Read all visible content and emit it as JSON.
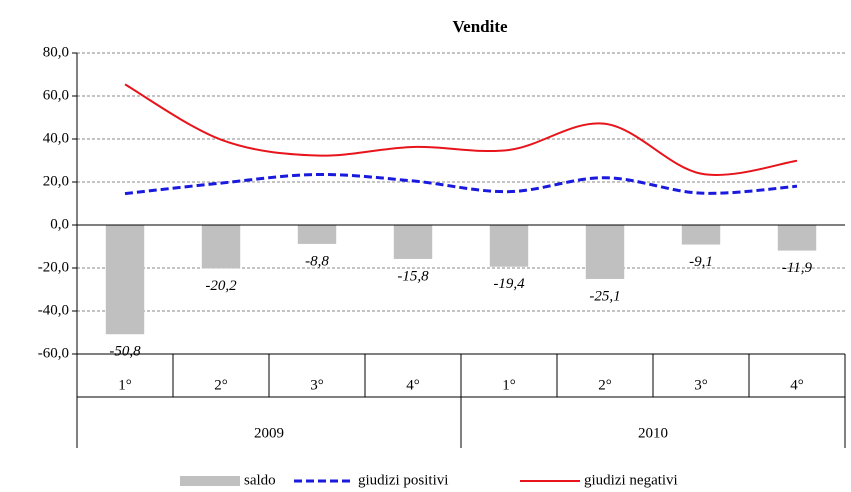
{
  "chart_data": {
    "type": "bar-line",
    "title": "Vendite",
    "categories": [
      "1°",
      "2°",
      "3°",
      "4°",
      "1°",
      "2°",
      "3°",
      "4°"
    ],
    "groups": [
      "2009",
      "2010"
    ],
    "series": [
      {
        "name": "saldo",
        "type": "bar",
        "color": "#c0c0c0",
        "values": [
          -50.8,
          -20.2,
          -8.8,
          -15.8,
          -19.4,
          -25.1,
          -9.1,
          -11.9
        ],
        "value_labels": [
          "-50,8",
          "-20,2",
          "-8,8",
          "-15,8",
          "-19,4",
          "-25,1",
          "-9,1",
          "-11,9"
        ]
      },
      {
        "name": "giudizi positivi",
        "type": "line",
        "dashed": true,
        "color": "#1a1adf",
        "values": [
          14.6,
          19.5,
          23.5,
          20.5,
          15.5,
          22,
          14.8,
          18
        ]
      },
      {
        "name": "giudizi negativi",
        "type": "line",
        "dashed": false,
        "color": "#e8141c",
        "values": [
          65.4,
          39.7,
          32.3,
          36.3,
          34.9,
          47.1,
          23.9,
          29.9
        ]
      }
    ],
    "ylim": [
      -60,
      80
    ],
    "yticks": [
      {
        "value": -60,
        "label": "-60,0"
      },
      {
        "value": -40,
        "label": "-40,0"
      },
      {
        "value": -20,
        "label": "-20,0"
      },
      {
        "value": 0,
        "label": "0,0"
      },
      {
        "value": 20,
        "label": "20,0"
      },
      {
        "value": 40,
        "label": "40,0"
      },
      {
        "value": 60,
        "label": "60,0"
      },
      {
        "value": 80,
        "label": "80,0"
      }
    ],
    "grid": true,
    "legend": "bottom"
  }
}
